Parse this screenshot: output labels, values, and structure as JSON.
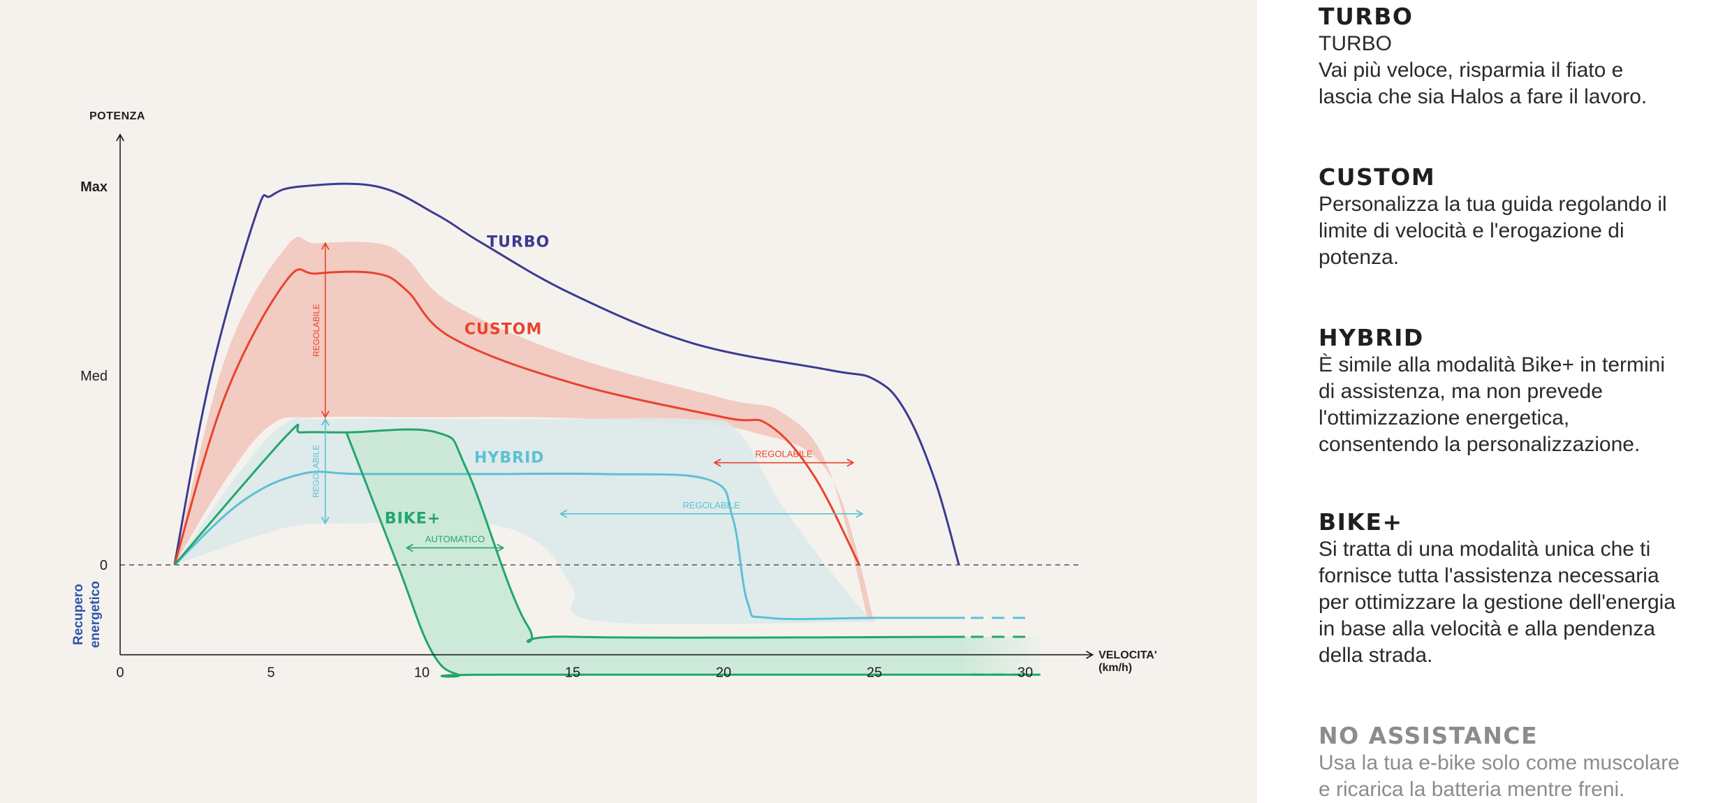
{
  "chart_data": {
    "type": "line",
    "title": "",
    "ylabel": "POTENZA",
    "xlabel": "VELOCITA'",
    "xlabel_unit": "(km/h)",
    "negative_region_label_1": "Recupero",
    "negative_region_label_2": "energetico",
    "xlim": [
      0,
      32
    ],
    "ylim": [
      -0.5,
      2.2
    ],
    "x_ticks": [
      0,
      5,
      10,
      15,
      20,
      25,
      30
    ],
    "x_tick_labels": [
      "0",
      "5",
      "10",
      "15",
      "20",
      "25",
      "30"
    ],
    "y_ticks": [
      0,
      1,
      2
    ],
    "y_tick_labels": [
      "0",
      "Med",
      "Max"
    ],
    "zero_line": "dashed",
    "series": [
      {
        "name": "TURBO",
        "color": "#3b3a92",
        "x": [
          1.8,
          3,
          4.5,
          5,
          6,
          8.5,
          10.5,
          12,
          15,
          19,
          23.5,
          25,
          26,
          27,
          27.8
        ],
        "y": [
          0,
          1.0,
          1.85,
          1.95,
          2.0,
          2.0,
          1.85,
          1.7,
          1.43,
          1.17,
          1.03,
          0.98,
          0.82,
          0.45,
          0
        ]
      },
      {
        "name": "CUSTOM",
        "color": "#e8432d",
        "x": [
          1.8,
          3.5,
          5.5,
          6.5,
          8.5,
          9.5,
          11,
          15,
          20,
          21.5,
          23,
          24.5
        ],
        "y": [
          0,
          0.9,
          1.5,
          1.54,
          1.54,
          1.45,
          1.2,
          0.96,
          0.78,
          0.74,
          0.47,
          0
        ]
      },
      {
        "name": "HYBRID",
        "color": "#5bc1d2",
        "x": [
          1.8,
          4,
          6,
          8,
          12,
          16,
          19.5,
          20.3,
          20.8,
          21.5,
          25,
          28
        ],
        "y": [
          0,
          0.33,
          0.48,
          0.48,
          0.48,
          0.48,
          0.45,
          0.25,
          -0.2,
          -0.28,
          -0.28,
          -0.28
        ]
      },
      {
        "name": "BIKE+",
        "color": "#22a66b",
        "x": [
          1.8,
          5.5,
          6,
          7.5,
          10.5,
          11.5,
          13.5,
          15,
          28
        ],
        "y": [
          0,
          0.68,
          0.7,
          0.7,
          0.7,
          0.5,
          -0.32,
          -0.38,
          -0.38
        ]
      }
    ],
    "bands": [
      {
        "name": "CUSTOM range",
        "color": "#f2c7bd",
        "x_upper": [
          1.8,
          3.5,
          5.5,
          6.5,
          8.5,
          9.5,
          11,
          15,
          20,
          22,
          23.5,
          24.8
        ],
        "y_upper": [
          0,
          1.1,
          1.68,
          1.7,
          1.7,
          1.62,
          1.38,
          1.1,
          0.88,
          0.8,
          0.5,
          -0.3
        ],
        "x_lower": [
          25,
          23.5,
          21,
          18,
          14,
          10,
          6.5,
          5,
          3.5,
          1.8
        ],
        "y_lower": [
          -0.3,
          0.48,
          0.7,
          0.75,
          0.78,
          0.78,
          0.78,
          0.74,
          0.45,
          0
        ]
      },
      {
        "name": "HYBRID range",
        "color": "#dde9ea",
        "x_upper": [
          1.8,
          4,
          5.5,
          7,
          14,
          19,
          20.5,
          22,
          24.5,
          25.3
        ],
        "y_upper": [
          0,
          0.5,
          0.75,
          0.77,
          0.77,
          0.77,
          0.7,
          0.3,
          -0.22,
          -0.3
        ],
        "x_lower": [
          25.3,
          16,
          15,
          14,
          12,
          8,
          6,
          4.5,
          1.8
        ],
        "y_lower": [
          -0.3,
          -0.3,
          -0.12,
          0.1,
          0.22,
          0.22,
          0.21,
          0.15,
          0
        ]
      },
      {
        "name": "BIKE+ range",
        "color": "#c9e8d6",
        "x_upper": [
          7.5,
          10.5,
          11.5,
          13.5,
          15,
          30.5
        ],
        "y_upper": [
          0.7,
          0.7,
          0.5,
          -0.32,
          -0.38,
          -0.38
        ],
        "x_lower": [
          30.5,
          12.5,
          11.2,
          10.3,
          9.2,
          7.5
        ],
        "y_lower": [
          -0.58,
          -0.58,
          -0.58,
          -0.45,
          0.0,
          0.7
        ]
      }
    ],
    "annotations": [
      {
        "text": "TURBO",
        "series": "TURBO",
        "x": 13.2,
        "y": 1.68
      },
      {
        "text": "CUSTOM",
        "series": "CUSTOM",
        "x": 12.7,
        "y": 1.22
      },
      {
        "text": "HYBRID",
        "series": "HYBRID",
        "x": 12.9,
        "y": 0.54
      },
      {
        "text": "BIKE+",
        "series": "BIKE+",
        "x": 9.7,
        "y": 0.22
      },
      {
        "text": "REGOLABILE",
        "series": "CUSTOM",
        "kind": "vertical-arrow",
        "x": 6.8,
        "y1": 0.78,
        "y2": 1.7
      },
      {
        "text": "REGOLABILE",
        "series": "HYBRID",
        "kind": "vertical-arrow",
        "x": 6.8,
        "y1": 0.22,
        "y2": 0.77
      },
      {
        "text": "AUTOMATICO",
        "series": "BIKE+",
        "kind": "horizontal-arrow",
        "y": 0.09,
        "x1": 9.5,
        "x2": 12.7
      },
      {
        "text": "REGOLABILE",
        "series": "HYBRID",
        "kind": "horizontal-arrow",
        "y": 0.27,
        "x1": 14.6,
        "x2": 24.6
      },
      {
        "text": "REGOLABILE",
        "series": "CUSTOM",
        "kind": "horizontal-arrow",
        "y": 0.54,
        "x1": 19.7,
        "x2": 24.3
      }
    ]
  },
  "modes": [
    {
      "title": "TURBO",
      "subtitle": "TURBO",
      "description_lines": [
        "Vai più veloce, risparmia il fiato e",
        "lascia che sia Halos a fare il lavoro."
      ]
    },
    {
      "title": "CUSTOM",
      "description_lines": [
        "Personalizza la tua guida regolando il",
        "limite di velocità e l'erogazione di",
        "potenza."
      ]
    },
    {
      "title": "HYBRID",
      "description_lines": [
        "È simile alla modalità Bike+ in termini",
        "di assistenza, ma non prevede",
        "l'ottimizzazione energetica,",
        "consentendo la personalizzazione."
      ]
    },
    {
      "title": "BIKE+",
      "description_lines": [
        "Si tratta di una modalità unica che ti",
        "fornisce tutta l'assistenza necessaria",
        "per ottimizzare la gestione dell'energia",
        "in base alla velocità e alla pendenza",
        "della strada."
      ]
    },
    {
      "title": "NO ASSISTANCE",
      "description_lines": [
        "Usa la tua e-bike solo come muscolare",
        "e ricarica la batteria mentre freni."
      ]
    }
  ],
  "colors": {
    "axis": "#1f1f1f",
    "recupero": "#2e55a8",
    "muted_text": "#8c8c8c"
  }
}
